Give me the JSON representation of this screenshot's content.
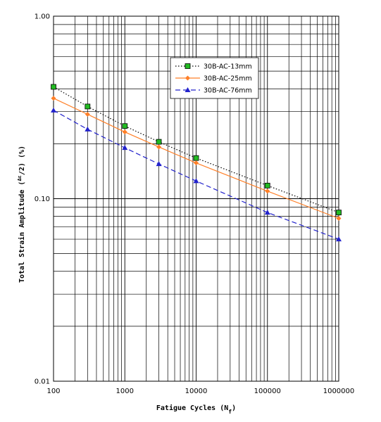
{
  "chart_data": {
    "type": "line",
    "xscale": "log",
    "yscale": "log",
    "xlim": [
      100,
      1000000
    ],
    "ylim": [
      0.01,
      1.0
    ],
    "x_ticks": [
      "100",
      "1000",
      "10000",
      "100000",
      "1000000"
    ],
    "y_ticks": [
      "0.01",
      "0.10",
      "1.00"
    ],
    "xlabel_main": "Fatigue Cycles (N",
    "xlabel_sub": "f",
    "xlabel_end": ")",
    "ylabel_main": "Total Strain Amplitude (",
    "ylabel_over": "Δε",
    "ylabel_end": "/2) (%)",
    "grid": true,
    "legend_position": "top-right",
    "series": [
      {
        "name": "30B-AC-13mm",
        "color": "#000000",
        "marker_color": "#22bb22",
        "marker": "square",
        "line_style": "dotted",
        "x": [
          100,
          300,
          1000,
          3000,
          10000,
          100000,
          1000000
        ],
        "y": [
          0.41,
          0.32,
          0.25,
          0.205,
          0.167,
          0.118,
          0.084
        ]
      },
      {
        "name": "30B-AC-25mm",
        "color": "#ff7f27",
        "marker_color": "#ff7f27",
        "marker": "diamond",
        "line_style": "solid",
        "x": [
          100,
          300,
          1000,
          3000,
          10000,
          100000,
          1000000
        ],
        "y": [
          0.355,
          0.29,
          0.232,
          0.192,
          0.157,
          0.11,
          0.078
        ]
      },
      {
        "name": "30B-AC-76mm",
        "color": "#2222cc",
        "marker_color": "#2222cc",
        "marker": "triangle",
        "line_style": "dashed",
        "x": [
          100,
          300,
          1000,
          3000,
          10000,
          100000,
          1000000
        ],
        "y": [
          0.305,
          0.24,
          0.19,
          0.155,
          0.125,
          0.084,
          0.06
        ]
      }
    ]
  }
}
